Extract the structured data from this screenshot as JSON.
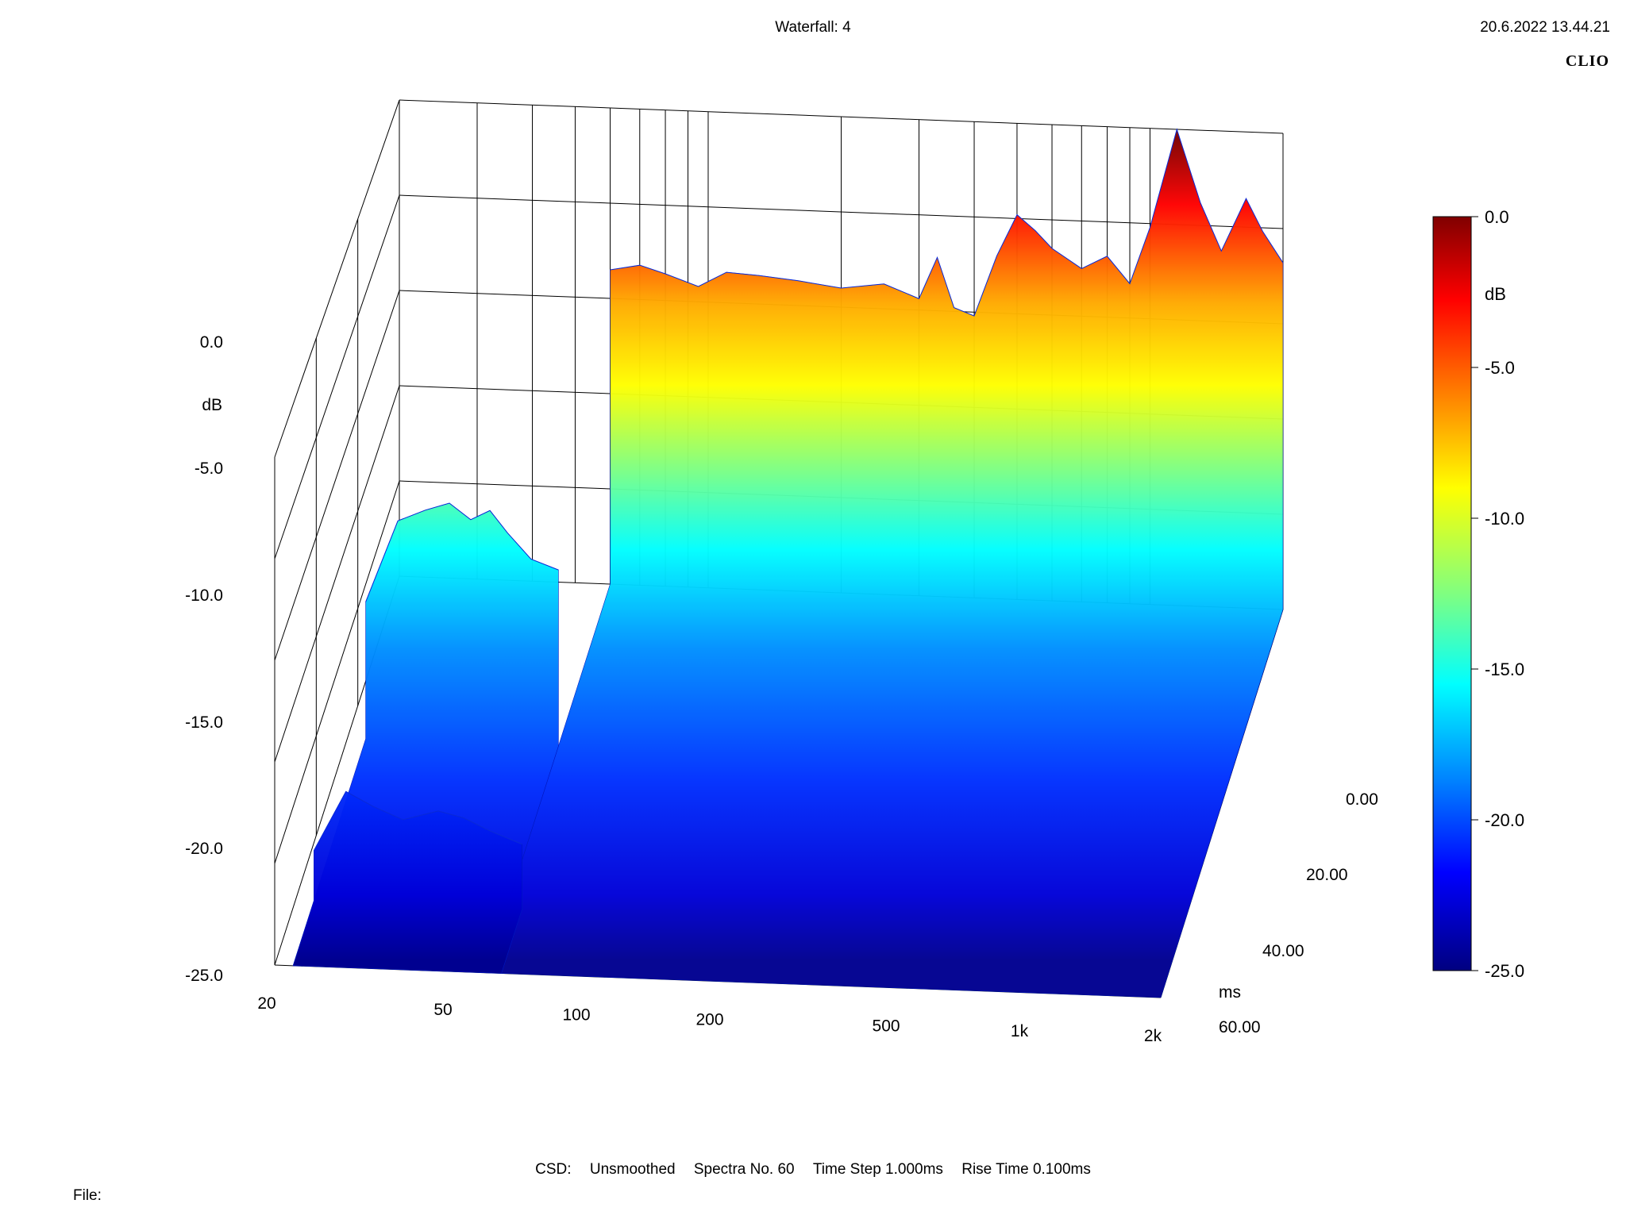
{
  "header": {
    "title": "Waterfall: 4",
    "timestamp": "20.6.2022 13.44.21",
    "brand": "CLIO"
  },
  "footer": {
    "items": [
      "CSD:",
      "Unsmoothed",
      "Spectra No. 60",
      "Time Step 1.000ms",
      "Rise Time 0.100ms"
    ],
    "file_label": "File:"
  },
  "chart_data": {
    "type": "waterfall",
    "title": "Waterfall: 4",
    "z_axis": {
      "label": "dB",
      "ticks": [
        "0.0",
        "-5.0",
        "-10.0",
        "-15.0",
        "-20.0",
        "-25.0"
      ],
      "range": [
        -25,
        0
      ]
    },
    "x_axis": {
      "ticks": [
        "20",
        "50",
        "100",
        "200",
        "500",
        "1k",
        "2k"
      ],
      "scale": "log",
      "range_hz": [
        20,
        2000
      ]
    },
    "y_axis": {
      "label": "ms",
      "ticks": [
        "0.00",
        "20.00",
        "40.00",
        "60.00"
      ],
      "range_ms": [
        0,
        60
      ]
    },
    "colorbar": {
      "label": "dB",
      "ticks": [
        "0.0",
        "-5.0",
        "-10.0",
        "-15.0",
        "-20.0",
        "-25.0"
      ],
      "colors": [
        "#800000",
        "#ff0000",
        "#ff8000",
        "#ffff00",
        "#80ff80",
        "#00ffff",
        "#0080ff",
        "#0000ff",
        "#000080"
      ]
    },
    "spectra_count": 60,
    "time_step_ms": 1.0,
    "rise_time_ms": 0.1,
    "slices": [
      {
        "time_ms": 0,
        "points": [
          {
            "hz": 60,
            "db": -8.5
          },
          {
            "hz": 70,
            "db": -8.2
          },
          {
            "hz": 80,
            "db": -8.6
          },
          {
            "hz": 95,
            "db": -9.2
          },
          {
            "hz": 110,
            "db": -8.4
          },
          {
            "hz": 130,
            "db": -8.5
          },
          {
            "hz": 160,
            "db": -8.7
          },
          {
            "hz": 200,
            "db": -9.0
          },
          {
            "hz": 250,
            "db": -8.7
          },
          {
            "hz": 300,
            "db": -9.4
          },
          {
            "hz": 330,
            "db": -7.2
          },
          {
            "hz": 360,
            "db": -9.8
          },
          {
            "hz": 400,
            "db": -10.2
          },
          {
            "hz": 450,
            "db": -7.0
          },
          {
            "hz": 500,
            "db": -4.8
          },
          {
            "hz": 550,
            "db": -5.6
          },
          {
            "hz": 600,
            "db": -6.5
          },
          {
            "hz": 700,
            "db": -7.5
          },
          {
            "hz": 800,
            "db": -6.8
          },
          {
            "hz": 900,
            "db": -8.2
          },
          {
            "hz": 1000,
            "db": -5.2
          },
          {
            "hz": 1150,
            "db": 0.0
          },
          {
            "hz": 1300,
            "db": -3.8
          },
          {
            "hz": 1450,
            "db": -6.3
          },
          {
            "hz": 1650,
            "db": -3.5
          },
          {
            "hz": 1800,
            "db": -5.2
          },
          {
            "hz": 2000,
            "db": -6.8
          }
        ]
      },
      {
        "time_ms": 25,
        "points": [
          {
            "hz": 22,
            "db": -18.0
          },
          {
            "hz": 26,
            "db": -13.8
          },
          {
            "hz": 30,
            "db": -13.2
          },
          {
            "hz": 34,
            "db": -12.8
          },
          {
            "hz": 38,
            "db": -13.6
          },
          {
            "hz": 42,
            "db": -13.1
          },
          {
            "hz": 46,
            "db": -14.2
          },
          {
            "hz": 52,
            "db": -15.5
          },
          {
            "hz": 60,
            "db": -16.0
          }
        ]
      },
      {
        "time_ms": 50,
        "points": [
          {
            "hz": 22,
            "db": -22.5
          },
          {
            "hz": 26,
            "db": -19.5
          },
          {
            "hz": 30,
            "db": -20.2
          },
          {
            "hz": 35,
            "db": -20.8
          },
          {
            "hz": 42,
            "db": -20.3
          },
          {
            "hz": 48,
            "db": -20.6
          },
          {
            "hz": 55,
            "db": -21.2
          },
          {
            "hz": 65,
            "db": -21.8
          }
        ]
      }
    ]
  }
}
